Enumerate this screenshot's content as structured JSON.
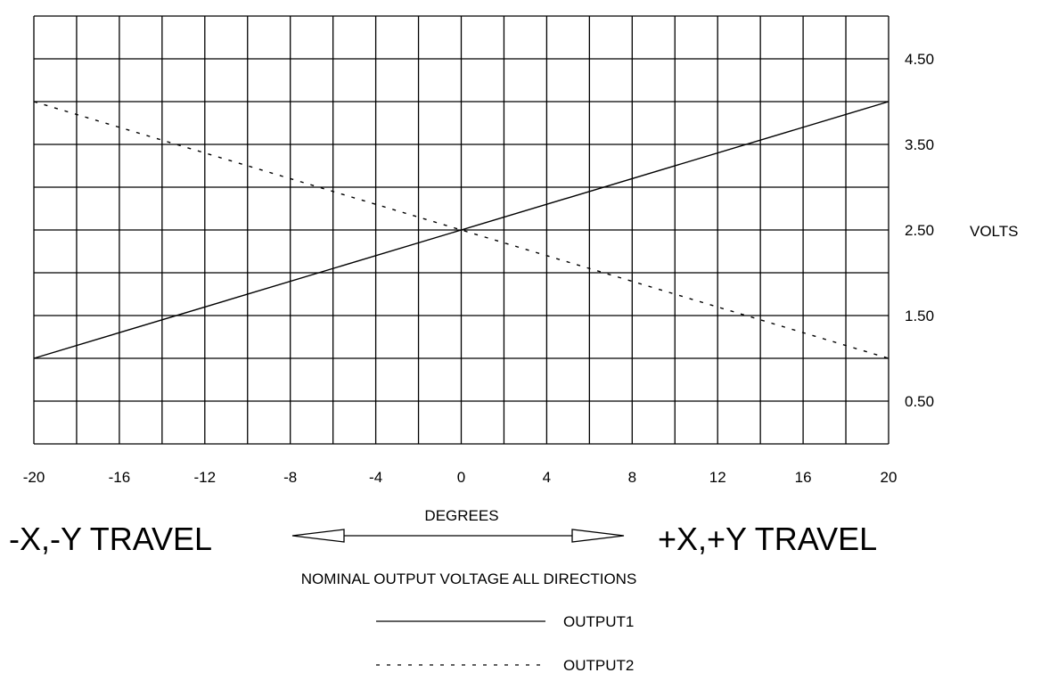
{
  "chart_data": {
    "type": "line",
    "title": "NOMINAL OUTPUT VOLTAGE ALL DIRECTIONS",
    "xlabel": "DEGREES",
    "ylabel": "VOLTS",
    "xlim": [
      -20,
      20
    ],
    "ylim": [
      0,
      5
    ],
    "grid": true,
    "x_ticks": [
      "-20",
      "-16",
      "-12",
      "-8",
      "-4",
      "0",
      "4",
      "8",
      "12",
      "16",
      "20"
    ],
    "y_ticks": [
      "0.50",
      "1.50",
      "2.50",
      "3.50",
      "4.50"
    ],
    "series": [
      {
        "name": "OUTPUT1",
        "style": "solid",
        "x": [
          -20,
          0,
          20
        ],
        "y": [
          1.0,
          2.5,
          4.0
        ]
      },
      {
        "name": "OUTPUT2",
        "style": "dotted",
        "x": [
          -20,
          0,
          20
        ],
        "y": [
          4.0,
          2.5,
          1.0
        ]
      }
    ],
    "annotations": {
      "left_travel": "-X,-Y TRAVEL",
      "right_travel": "+X,+Y TRAVEL"
    },
    "legend_placement": "bottom-center"
  }
}
